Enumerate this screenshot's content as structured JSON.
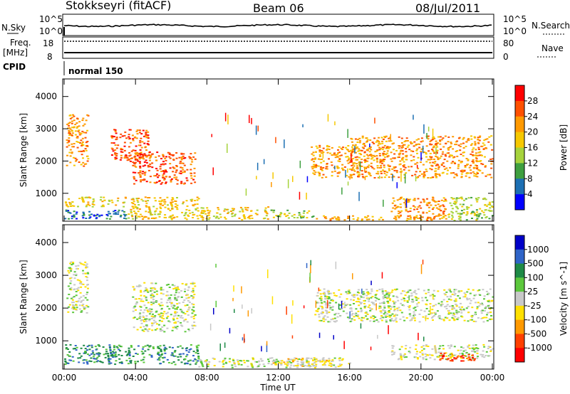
{
  "header": {
    "station": "Stokkseyri (fitACF)",
    "beam": "Beam 06",
    "date": "08/Jul/2011"
  },
  "strip_panels": {
    "nsky_label": "N.Sky",
    "nsky_ticks": [
      "10^5",
      "10^0"
    ],
    "nsearch_label": "N.Search",
    "nsearch_ticks": [
      "10^5",
      "10^0"
    ],
    "freq_label": "Freq.",
    "freq_unit": "[MHz]",
    "freq_ticks": [
      "18",
      "8"
    ],
    "nave_label": "Nave",
    "nave_ticks": [
      "80",
      "0"
    ],
    "cpid_label": "CPID",
    "cpid_value": "normal 150"
  },
  "chart_data": [
    {
      "type": "heatmap",
      "name": "power",
      "ylabel": "Slant Range [km]",
      "yticks": [
        "4000",
        "3000",
        "2000",
        "1000"
      ],
      "ylim": [
        180,
        4500
      ],
      "xlabel": "",
      "xticks": [
        "00:00",
        "04:00",
        "08:00",
        "12:00",
        "16:00",
        "20:00",
        "00:00"
      ],
      "xlim_hours": [
        0,
        24
      ],
      "colorbar": {
        "label": "Power [dB]",
        "ticks": [
          "28",
          "24",
          "20",
          "16",
          "12",
          "8",
          "4"
        ],
        "colors": [
          "#ff0000",
          "#ff5000",
          "#ff9900",
          "#f6c800",
          "#a6d33c",
          "#3e9f3f",
          "#1c6fb3",
          "#0000ff"
        ]
      },
      "regions": [
        {
          "t0": 0.1,
          "t1": 1.3,
          "r0": 1850,
          "r1": 3450,
          "level": 2
        },
        {
          "t0": 2.6,
          "t1": 4.7,
          "r0": 2000,
          "r1": 3000,
          "level": 1
        },
        {
          "t0": 3.8,
          "t1": 7.3,
          "r0": 1300,
          "r1": 2300,
          "level": 1
        },
        {
          "t0": 0.0,
          "t1": 7.5,
          "r0": 600,
          "r1": 900,
          "level": 3
        },
        {
          "t0": 0.0,
          "t1": 3.5,
          "r0": 220,
          "r1": 520,
          "level": 6
        },
        {
          "t0": 3.5,
          "t1": 11.5,
          "r0": 200,
          "r1": 600,
          "level": 3
        },
        {
          "t0": 11.5,
          "t1": 14.0,
          "r0": 250,
          "r1": 500,
          "level": 4
        },
        {
          "t0": 13.8,
          "t1": 16.5,
          "r0": 1500,
          "r1": 2500,
          "level": 2
        },
        {
          "t0": 16.0,
          "t1": 24.0,
          "r0": 1500,
          "r1": 2800,
          "level": 2
        },
        {
          "t0": 18.3,
          "t1": 21.5,
          "r0": 200,
          "r1": 900,
          "level": 2
        },
        {
          "t0": 21.5,
          "t1": 24.0,
          "r0": 180,
          "r1": 900,
          "level": 4
        },
        {
          "t0": 14.0,
          "t1": 21.0,
          "r0": 180,
          "r1": 320,
          "level": 2
        }
      ]
    },
    {
      "type": "heatmap",
      "name": "velocity",
      "ylabel": "Slant Range [km]",
      "yticks": [
        "4000",
        "3000",
        "2000",
        "1000"
      ],
      "ylim": [
        180,
        4500
      ],
      "xlabel": "Time UT",
      "xticks": [
        "00:00",
        "04:00",
        "08:00",
        "12:00",
        "16:00",
        "20:00",
        "00:00"
      ],
      "xlim_hours": [
        0,
        24
      ],
      "colorbar": {
        "label": "Velocity [m s^-1]",
        "ticks": [
          "1000",
          "500",
          "100",
          "25",
          "-25",
          "-100",
          "-500",
          "-1000"
        ],
        "colors": [
          "#0000c8",
          "#2f64c8",
          "#1e8a46",
          "#5cc83c",
          "#c8c8c8",
          "#ffe000",
          "#ff9900",
          "#ff4000",
          "#ff0000"
        ]
      },
      "regions": [
        {
          "t0": 0.1,
          "t1": 1.3,
          "r0": 1850,
          "r1": 3450,
          "level": 4
        },
        {
          "t0": 3.8,
          "t1": 7.3,
          "r0": 1300,
          "r1": 2800,
          "level": 4
        },
        {
          "t0": 0.0,
          "t1": 7.5,
          "r0": 300,
          "r1": 900,
          "level": 2
        },
        {
          "t0": 7.5,
          "t1": 16.0,
          "r0": 200,
          "r1": 500,
          "level": 4
        },
        {
          "t0": 11.5,
          "t1": 15.0,
          "r0": 250,
          "r1": 500,
          "level": 5
        },
        {
          "t0": 14.0,
          "t1": 24.0,
          "r0": 1600,
          "r1": 2600,
          "level": 4
        },
        {
          "t0": 18.3,
          "t1": 24.0,
          "r0": 450,
          "r1": 900,
          "level": 4
        },
        {
          "t0": 21.0,
          "t1": 23.0,
          "r0": 400,
          "r1": 650,
          "level": 7
        }
      ]
    }
  ]
}
